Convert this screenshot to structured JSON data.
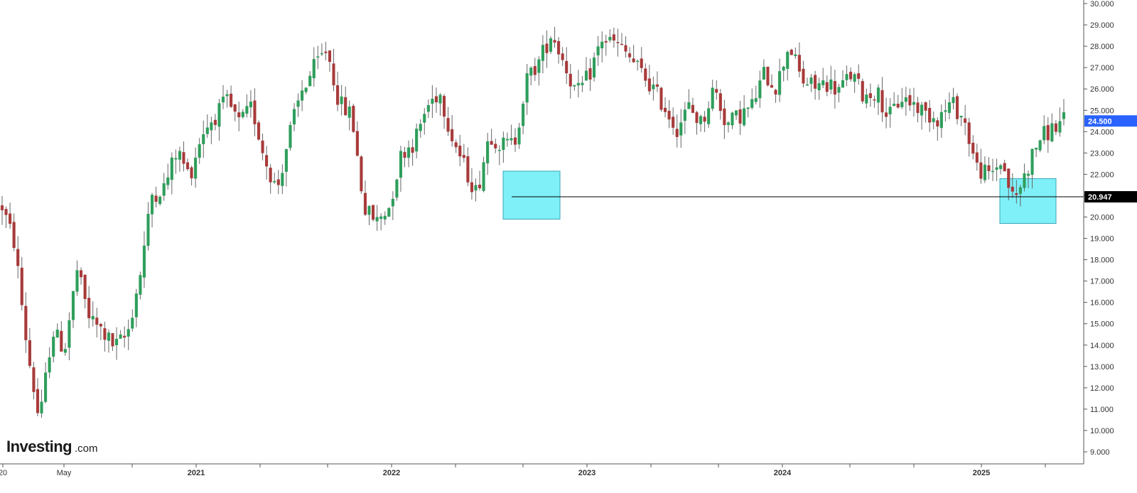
{
  "chart_data": {
    "type": "candlestick",
    "y_axis": {
      "ticks": [
        9,
        10,
        11,
        12,
        13,
        14,
        15,
        16,
        17,
        18,
        19,
        20,
        21,
        22,
        23,
        24,
        25,
        26,
        27,
        28,
        29,
        30
      ],
      "tick_labels": [
        "9.000",
        "10.000",
        "11.000",
        "12.000",
        "13.000",
        "14.000",
        "15.000",
        "16.000",
        "17.000",
        "18.000",
        "19.000",
        "20.000",
        "21.000",
        "22.000",
        "23.000",
        "24.000",
        "25.000",
        "26.000",
        "27.000",
        "28.000",
        "29.000",
        "30.000"
      ],
      "range": [
        8.2,
        30.1
      ],
      "position": "right"
    },
    "x_axis": {
      "labels": [
        {
          "text": "20",
          "year": false
        },
        {
          "text": "May",
          "year": false
        },
        {
          "text": "2021",
          "year": true
        },
        {
          "text": "2022",
          "year": true
        },
        {
          "text": "2023",
          "year": true
        },
        {
          "text": "2024",
          "year": true
        },
        {
          "text": "2025",
          "year": true
        }
      ]
    },
    "current_price": {
      "value": 24.5,
      "label": "24.500",
      "color": "#2962ff"
    },
    "support_level": {
      "value": 20.947,
      "label": "20.947",
      "color": "#000000"
    },
    "highlight_zones": [
      {
        "y_low": 19.9,
        "y_high": 22.15,
        "color": "#7ff0f8"
      },
      {
        "y_low": 19.7,
        "y_high": 21.8,
        "color": "#7ff0f8"
      }
    ],
    "colors": {
      "up": "#2e9e5b",
      "down": "#a83a3a",
      "wick": "#666666"
    },
    "anchors": [
      [
        20.6,
        20.4
      ],
      [
        19.0,
        18.5
      ],
      [
        13.5,
        14.2
      ],
      [
        9.8,
        10.8
      ],
      [
        14.8,
        14.6
      ],
      [
        13.6,
        14.0
      ],
      [
        17.8,
        17.2
      ],
      [
        15.5,
        15.0
      ],
      [
        14.8,
        14.5
      ],
      [
        13.6,
        14.2
      ],
      [
        14.3,
        14.6
      ],
      [
        17.0,
        17.3
      ],
      [
        20.8,
        21.3
      ],
      [
        21.3,
        21.5
      ],
      [
        23.0,
        23.3
      ],
      [
        22.0,
        21.8
      ],
      [
        23.8,
        24.1
      ],
      [
        24.6,
        24.8
      ],
      [
        25.5,
        25.3
      ],
      [
        24.2,
        24.5
      ],
      [
        25.3,
        25.0
      ],
      [
        23.0,
        22.6
      ],
      [
        21.0,
        21.5
      ],
      [
        23.8,
        24.0
      ],
      [
        26.0,
        25.8
      ],
      [
        27.2,
        26.8
      ],
      [
        28.0,
        27.8
      ],
      [
        25.5,
        25.1
      ],
      [
        25.0,
        24.5
      ],
      [
        20.2,
        20.5
      ],
      [
        19.7,
        19.9
      ],
      [
        20.2,
        20.8
      ],
      [
        22.8,
        23.3
      ],
      [
        23.4,
        23.6
      ],
      [
        25.0,
        25.3
      ],
      [
        26.0,
        25.8
      ],
      [
        24.0,
        23.7
      ],
      [
        22.2,
        22.5
      ],
      [
        21.0,
        21.2
      ],
      [
        23.8,
        24.1
      ],
      [
        23.5,
        23.2
      ],
      [
        23.3,
        23.6
      ],
      [
        26.2,
        26.6
      ],
      [
        27.0,
        27.6
      ],
      [
        28.8,
        28.5
      ],
      [
        27.3,
        27.2
      ],
      [
        25.5,
        25.9
      ],
      [
        26.5,
        26.8
      ],
      [
        28.5,
        28.2
      ],
      [
        28.3,
        28.0
      ],
      [
        27.8,
        27.5
      ],
      [
        27.0,
        26.8
      ],
      [
        26.2,
        26.0
      ],
      [
        25.3,
        25.1
      ],
      [
        24.0,
        24.3
      ],
      [
        25.0,
        25.3
      ],
      [
        24.2,
        24.5
      ],
      [
        26.0,
        26.2
      ],
      [
        24.2,
        24.4
      ],
      [
        24.6,
        24.9
      ],
      [
        25.0,
        25.3
      ],
      [
        26.5,
        26.9
      ],
      [
        26.2,
        26.0
      ],
      [
        28.0,
        28.3
      ],
      [
        26.5,
        26.3
      ],
      [
        26.0,
        26.2
      ],
      [
        26.5,
        26.1
      ],
      [
        25.8,
        26.1
      ],
      [
        26.8,
        26.6
      ],
      [
        25.5,
        25.8
      ],
      [
        26.0,
        25.8
      ],
      [
        24.5,
        24.8
      ],
      [
        25.5,
        25.7
      ],
      [
        25.2,
        25.4
      ],
      [
        25.0,
        24.7
      ],
      [
        24.5,
        24.8
      ],
      [
        25.2,
        25.5
      ],
      [
        24.5,
        24.7
      ],
      [
        22.5,
        22.2
      ],
      [
        21.8,
        22.0
      ],
      [
        22.5,
        22.8
      ],
      [
        20.5,
        20.9
      ],
      [
        22.0,
        22.3
      ],
      [
        23.5,
        23.8
      ],
      [
        24.0,
        24.2
      ],
      [
        24.4,
        24.6
      ]
    ]
  },
  "watermark": {
    "brand": "Investing",
    "suffix": ".com"
  }
}
